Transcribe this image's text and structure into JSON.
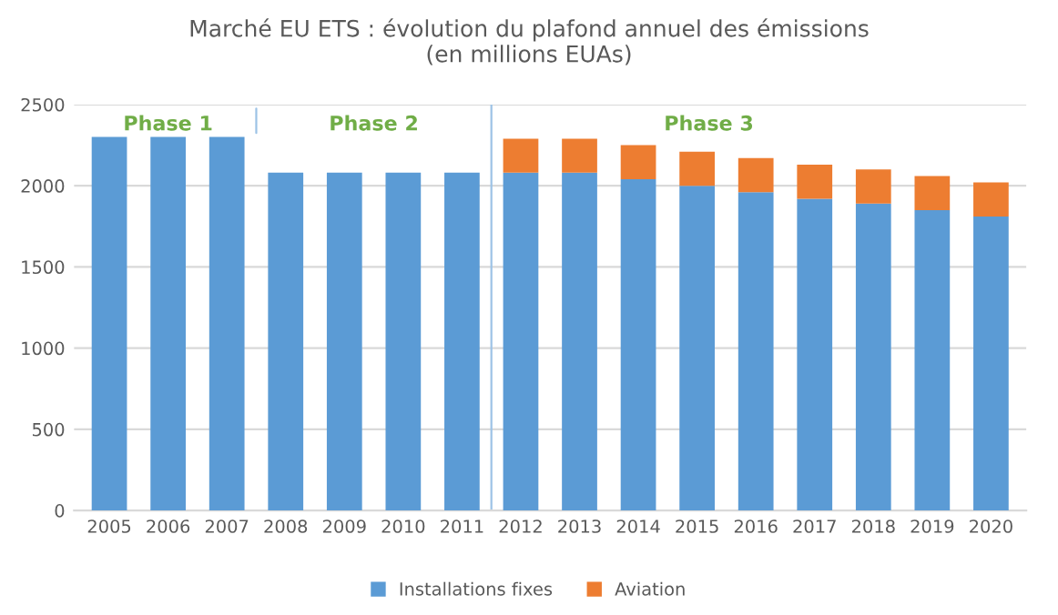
{
  "chart_data": {
    "type": "bar",
    "title": "Marché EU ETS : évolution du plafond annuel des émissions\n(en millions EUAs)",
    "categories": [
      "2005",
      "2006",
      "2007",
      "2008",
      "2009",
      "2010",
      "2011",
      "2012",
      "2013",
      "2014",
      "2015",
      "2016",
      "2017",
      "2018",
      "2019",
      "2020"
    ],
    "stacked": true,
    "series": [
      {
        "name": "Installations fixes",
        "color": "#5b9bd5",
        "values": [
          2300,
          2300,
          2300,
          2080,
          2080,
          2080,
          2080,
          2080,
          2080,
          2040,
          2000,
          1960,
          1920,
          1890,
          1850,
          1810
        ]
      },
      {
        "name": "Aviation",
        "color": "#ed7d31",
        "values": [
          null,
          null,
          null,
          null,
          null,
          null,
          null,
          210,
          210,
          210,
          210,
          210,
          210,
          210,
          210,
          210
        ]
      }
    ],
    "ylim": [
      0,
      2500
    ],
    "yticks": [
      0,
      500,
      1000,
      1500,
      2000,
      2500
    ],
    "grid": "y",
    "legend": "bottom",
    "ref_lines": [
      {
        "axis": "x",
        "value": "2012",
        "color": "#9dc3e6"
      }
    ],
    "annotations": [
      "Phase 1",
      "Phase 2",
      "Phase 3"
    ]
  }
}
